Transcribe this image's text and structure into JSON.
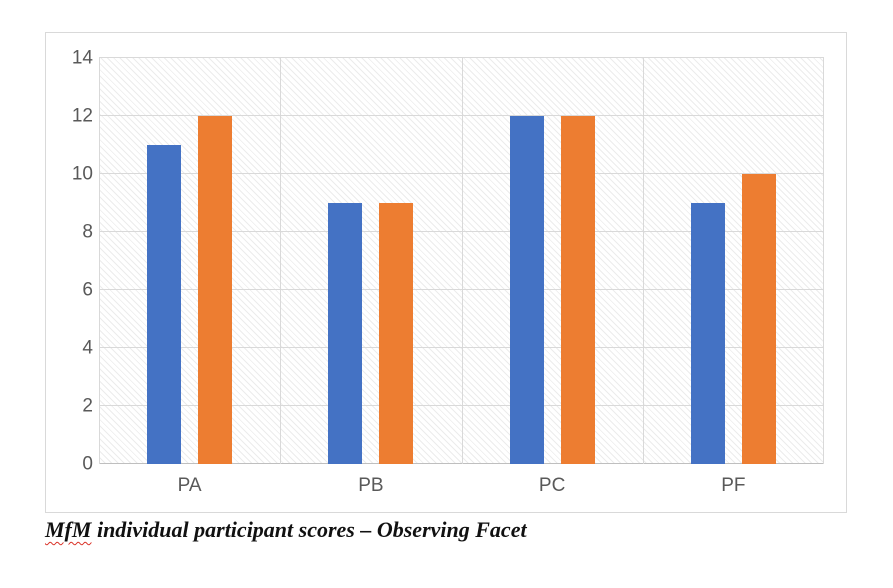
{
  "chart_data": {
    "type": "bar",
    "categories": [
      "PA",
      "PB",
      "PC",
      "PF"
    ],
    "series": [
      {
        "color": "#4472C4",
        "values": [
          11,
          9,
          12,
          9
        ]
      },
      {
        "color": "#ED7D31",
        "values": [
          12,
          9,
          12,
          10
        ]
      }
    ],
    "ylim": [
      0,
      14
    ],
    "yticks": [
      0,
      2,
      4,
      6,
      8,
      10,
      12,
      14
    ],
    "grid": true,
    "legend_position": "none",
    "plot_area_fill": "light-diagonal-hatch"
  },
  "caption": {
    "flagged_word": "MfM",
    "rest": " individual participant scores – Observing Facet",
    "full_text": "MfM individual participant scores – Observing Facet",
    "spellcheck_underline_color": "#d93025"
  },
  "colors": {
    "bar_blue": "#4472C4",
    "bar_orange": "#ED7D31",
    "gridline": "#d9d9d9",
    "axis_label": "#595959",
    "chart_border": "#d9d9d9"
  }
}
